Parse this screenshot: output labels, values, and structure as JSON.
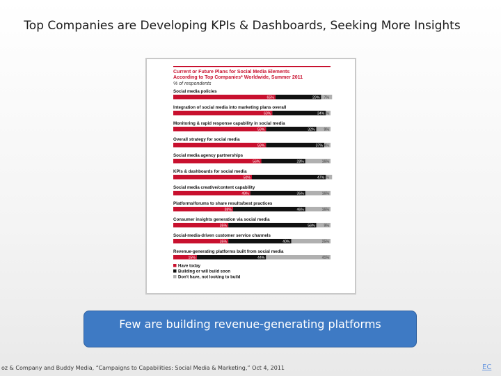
{
  "slide": {
    "title": "Top Companies are Developing KPIs & Dashboards, Seeking More Insights",
    "callout": "Few are building revenue-generating platforms",
    "source": "oz & Company and Buddy Media, “Campaigns to Capabilities: Social Media & Marketing,” Oct 4, 2011",
    "page_tag": "EC"
  },
  "chart_data": {
    "type": "bar",
    "orientation": "horizontal-stacked-100",
    "title": "Current or Future Plans for Social Media Elements According to Top Companies* Worldwide, Summer 2011",
    "title_lines": [
      "Current or Future Plans for Social Media Elements",
      "According to Top Companies* Worldwide, Summer 2011"
    ],
    "subtitle": "% of respondents",
    "xlim": [
      0,
      100
    ],
    "categories": [
      "Social media policies",
      "Integration of social media into marketing plans overall",
      "Monitoring & rapid response capability in social media",
      "Overall strategy for social media",
      "Social media agency partnerships",
      "KPIs & dashboards for social media",
      "Social media creative/content capability",
      "Platforms/forums to share results/best practices",
      "Consumer insights generation via social media",
      "Social-media-driven customer service channels",
      "Revenue-generating platforms built from social media"
    ],
    "series": [
      {
        "name": "Have today",
        "color": "#c8102e",
        "values": [
          65,
          63,
          59,
          59,
          56,
          50,
          49,
          38,
          35,
          35,
          15
        ]
      },
      {
        "name": "Building or will build soon",
        "color": "#111111",
        "values": [
          29,
          34,
          32,
          37,
          28,
          47,
          35,
          46,
          56,
          40,
          44
        ]
      },
      {
        "name": "Don't have, not looking to build",
        "color": "#b0b0b0",
        "values": [
          7,
          3,
          9,
          4,
          16,
          4,
          16,
          16,
          9,
          25,
          41
        ]
      }
    ],
    "value_labels": [
      [
        "65%",
        "29%",
        "7%"
      ],
      [
        "63%",
        "34%",
        "3%"
      ],
      [
        "59%",
        "32%",
        "9%"
      ],
      [
        "59%",
        "37%",
        "4%"
      ],
      [
        "56%",
        "28%",
        "16%"
      ],
      [
        "50%",
        "47%",
        "4%"
      ],
      [
        "49%",
        "35%",
        "16%"
      ],
      [
        "38%",
        "46%",
        "16%"
      ],
      [
        "35%",
        "56%",
        "9%"
      ],
      [
        "35%",
        "40%",
        "25%"
      ],
      [
        "15%",
        "44%",
        "41%"
      ]
    ],
    "legend": [
      "Have today",
      "Building or will build soon",
      "Don't have, not looking to build"
    ],
    "legend_position": "bottom-left"
  }
}
